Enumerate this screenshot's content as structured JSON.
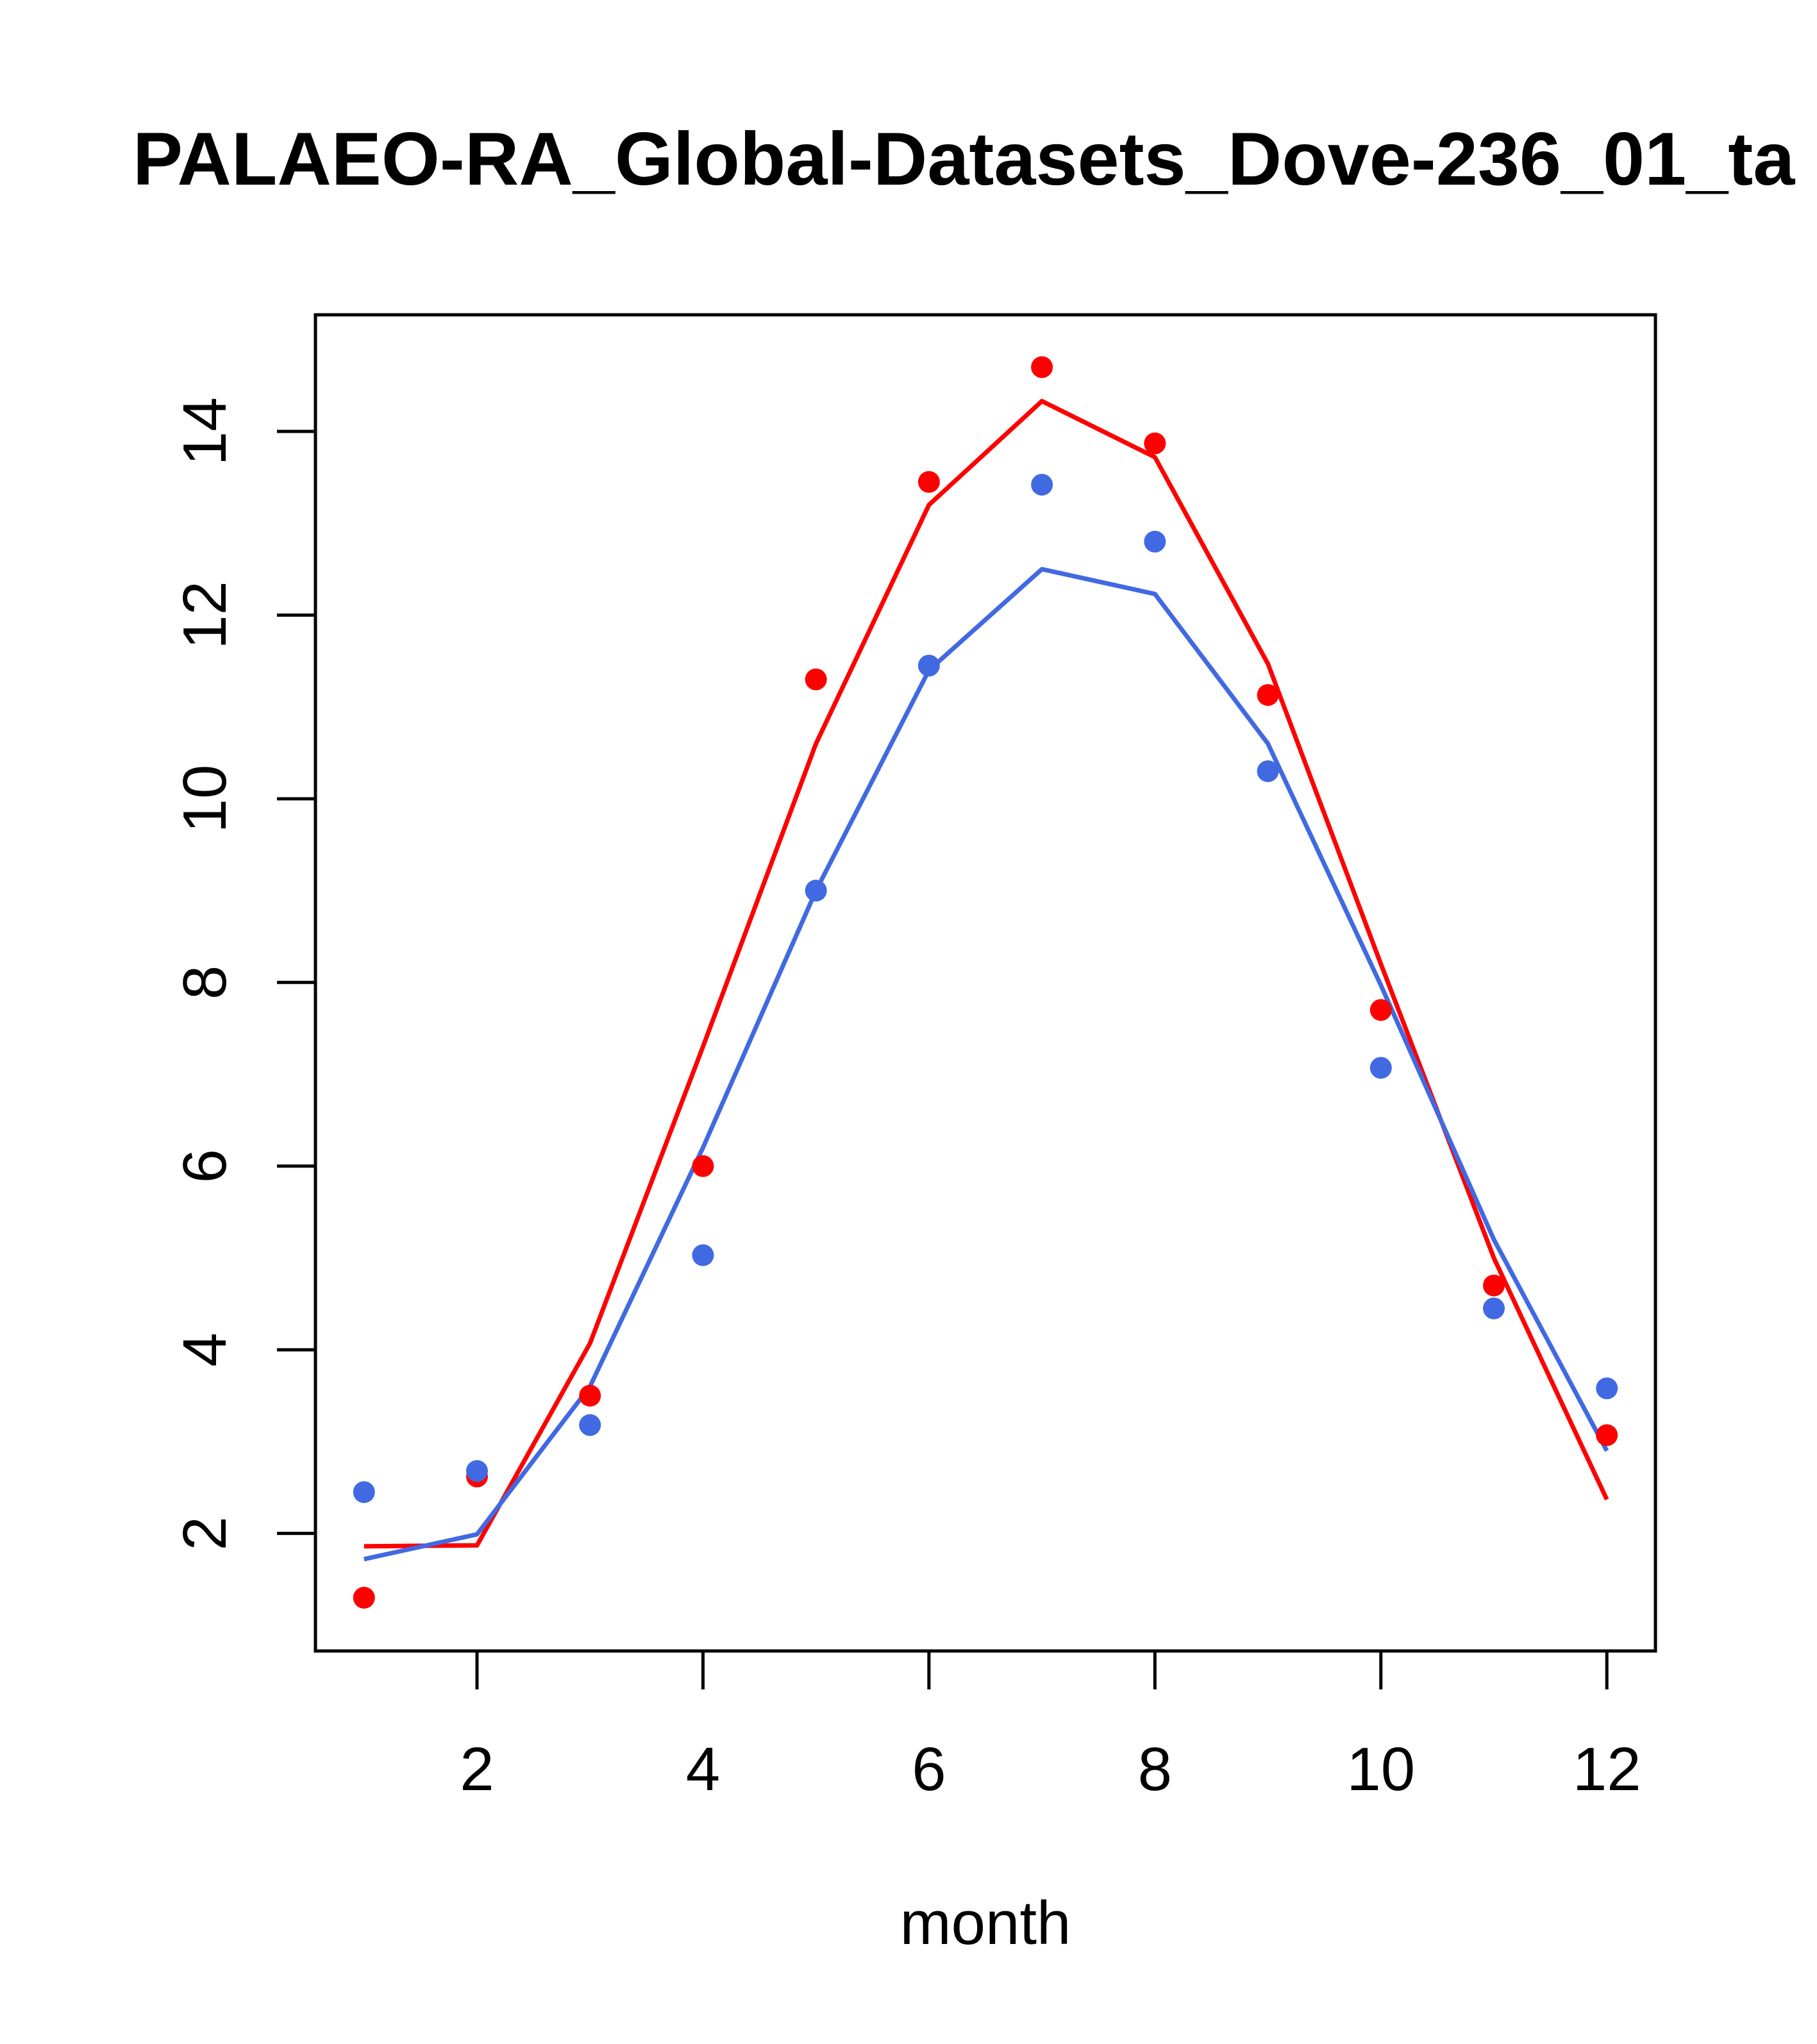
{
  "chart_data": {
    "type": "line",
    "title": "PALAEO-RA_Global-Datasets_Dove-236_01_ta",
    "xlabel": "month",
    "ylabel": "",
    "xlim": [
      0.57,
      12.43
    ],
    "ylim": [
      0.72,
      15.27
    ],
    "x_ticks": [
      2,
      4,
      6,
      8,
      10,
      12
    ],
    "y_ticks": [
      2,
      4,
      6,
      8,
      10,
      12,
      14
    ],
    "grid": false,
    "legend": "none",
    "x": [
      1,
      2,
      3,
      4,
      5,
      6,
      7,
      8,
      9,
      10,
      11,
      12
    ],
    "series": [
      {
        "color": "#ff0000",
        "points": [
          1.3,
          2.62,
          3.5,
          6.0,
          11.3,
          13.45,
          14.7,
          13.87,
          11.13,
          7.7,
          4.7,
          3.07
        ],
        "line": [
          1.86,
          1.87,
          4.07,
          7.3,
          10.6,
          13.2,
          14.33,
          13.72,
          11.47,
          8.2,
          5.0,
          2.37
        ]
      },
      {
        "color": "#4169e1",
        "points": [
          2.45,
          2.68,
          3.18,
          5.03,
          9.0,
          11.45,
          13.42,
          12.8,
          10.3,
          7.07,
          4.45,
          3.58
        ],
        "line": [
          1.72,
          1.99,
          3.6,
          6.2,
          9.0,
          11.4,
          12.5,
          12.23,
          10.6,
          7.97,
          5.2,
          2.9
        ]
      }
    ]
  }
}
